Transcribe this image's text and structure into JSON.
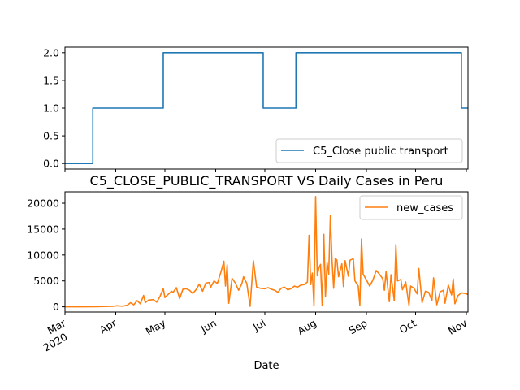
{
  "chart_data": [
    {
      "type": "line",
      "title": "",
      "xlabel": "",
      "ylabel": "",
      "ylim": [
        -0.1,
        2.1
      ],
      "yticks": [
        0.0,
        0.5,
        1.0,
        1.5,
        2.0
      ],
      "ytick_labels": [
        "0.0",
        "0.5",
        "1.0",
        "1.5",
        "2.0"
      ],
      "legend_position": "lower-right",
      "grid": false,
      "series": [
        {
          "name": "C5_Close public transport",
          "color": "#1f77b4",
          "step": true,
          "points": [
            [
              "2020-03-01",
              0
            ],
            [
              "2020-03-18",
              0
            ],
            [
              "2020-03-18",
              1
            ],
            [
              "2020-04-30",
              1
            ],
            [
              "2020-04-30",
              2
            ],
            [
              "2020-06-30",
              2
            ],
            [
              "2020-06-30",
              1
            ],
            [
              "2020-07-20",
              1
            ],
            [
              "2020-07-20",
              2
            ],
            [
              "2020-10-29",
              2
            ],
            [
              "2020-10-29",
              1
            ],
            [
              "2020-11-02",
              1
            ]
          ]
        }
      ]
    },
    {
      "type": "line",
      "title": "C5_CLOSE_PUBLIC_TRANSPORT VS Daily Cases in Peru",
      "xlabel": "Date",
      "ylabel": "",
      "xlim": [
        "2020-03-01",
        "2020-11-02"
      ],
      "ylim": [
        -1000,
        22200
      ],
      "yticks": [
        0,
        5000,
        10000,
        15000,
        20000
      ],
      "ytick_labels": [
        "0",
        "5000",
        "10000",
        "15000",
        "20000"
      ],
      "xticks": [
        {
          "date": "2020-03-01",
          "label": "Mar",
          "sublabel": "2020"
        },
        {
          "date": "2020-04-01",
          "label": "Apr"
        },
        {
          "date": "2020-05-01",
          "label": "May"
        },
        {
          "date": "2020-06-01",
          "label": "Jun"
        },
        {
          "date": "2020-07-01",
          "label": "Jul"
        },
        {
          "date": "2020-08-01",
          "label": "Aug"
        },
        {
          "date": "2020-09-01",
          "label": "Sep"
        },
        {
          "date": "2020-10-01",
          "label": "Oct"
        },
        {
          "date": "2020-11-01",
          "label": "Nov"
        }
      ],
      "legend_position": "upper-right",
      "grid": false,
      "series": [
        {
          "name": "new_cases",
          "color": "#ff7f0e",
          "points": [
            [
              "2020-03-01",
              0
            ],
            [
              "2020-03-10",
              0
            ],
            [
              "2020-03-20",
              30
            ],
            [
              "2020-03-25",
              60
            ],
            [
              "2020-03-30",
              100
            ],
            [
              "2020-04-02",
              200
            ],
            [
              "2020-04-05",
              120
            ],
            [
              "2020-04-08",
              300
            ],
            [
              "2020-04-10",
              800
            ],
            [
              "2020-04-12",
              400
            ],
            [
              "2020-04-14",
              1200
            ],
            [
              "2020-04-16",
              600
            ],
            [
              "2020-04-18",
              2200
            ],
            [
              "2020-04-19",
              800
            ],
            [
              "2020-04-21",
              1300
            ],
            [
              "2020-04-24",
              1400
            ],
            [
              "2020-04-26",
              900
            ],
            [
              "2020-04-28",
              2000
            ],
            [
              "2020-04-30",
              3500
            ],
            [
              "2020-05-01",
              1800
            ],
            [
              "2020-05-03",
              2400
            ],
            [
              "2020-05-05",
              3000
            ],
            [
              "2020-05-06",
              2800
            ],
            [
              "2020-05-08",
              3700
            ],
            [
              "2020-05-10",
              1600
            ],
            [
              "2020-05-12",
              3400
            ],
            [
              "2020-05-14",
              3500
            ],
            [
              "2020-05-16",
              3200
            ],
            [
              "2020-05-18",
              2600
            ],
            [
              "2020-05-20",
              3300
            ],
            [
              "2020-05-22",
              4400
            ],
            [
              "2020-05-24",
              3000
            ],
            [
              "2020-05-26",
              4600
            ],
            [
              "2020-05-28",
              4700
            ],
            [
              "2020-05-29",
              3800
            ],
            [
              "2020-05-31",
              5000
            ],
            [
              "2020-06-02",
              4500
            ],
            [
              "2020-06-04",
              6500
            ],
            [
              "2020-06-06",
              8800
            ],
            [
              "2020-06-07",
              4000
            ],
            [
              "2020-06-08",
              8100
            ],
            [
              "2020-06-09",
              700
            ],
            [
              "2020-06-11",
              5500
            ],
            [
              "2020-06-13",
              4600
            ],
            [
              "2020-06-15",
              3200
            ],
            [
              "2020-06-17",
              4500
            ],
            [
              "2020-06-18",
              5800
            ],
            [
              "2020-06-20",
              4500
            ],
            [
              "2020-06-22",
              100
            ],
            [
              "2020-06-24",
              8900
            ],
            [
              "2020-06-26",
              3800
            ],
            [
              "2020-06-28",
              3600
            ],
            [
              "2020-07-01",
              3500
            ],
            [
              "2020-07-03",
              3700
            ],
            [
              "2020-07-05",
              3400
            ],
            [
              "2020-07-07",
              3200
            ],
            [
              "2020-07-09",
              2800
            ],
            [
              "2020-07-11",
              3600
            ],
            [
              "2020-07-13",
              3800
            ],
            [
              "2020-07-15",
              3300
            ],
            [
              "2020-07-17",
              3500
            ],
            [
              "2020-07-19",
              4000
            ],
            [
              "2020-07-21",
              3800
            ],
            [
              "2020-07-23",
              4200
            ],
            [
              "2020-07-25",
              4300
            ],
            [
              "2020-07-27",
              4800
            ],
            [
              "2020-07-28",
              13800
            ],
            [
              "2020-07-29",
              4300
            ],
            [
              "2020-07-30",
              6500
            ],
            [
              "2020-07-31",
              200
            ],
            [
              "2020-08-01",
              21300
            ],
            [
              "2020-08-02",
              6000
            ],
            [
              "2020-08-03",
              7500
            ],
            [
              "2020-08-04",
              8200
            ],
            [
              "2020-08-05",
              200
            ],
            [
              "2020-08-06",
              14000
            ],
            [
              "2020-08-07",
              2000
            ],
            [
              "2020-08-08",
              8500
            ],
            [
              "2020-08-09",
              6300
            ],
            [
              "2020-08-10",
              17600
            ],
            [
              "2020-08-11",
              9100
            ],
            [
              "2020-08-12",
              3600
            ],
            [
              "2020-08-13",
              9400
            ],
            [
              "2020-08-14",
              9000
            ],
            [
              "2020-08-15",
              5800
            ],
            [
              "2020-08-17",
              8300
            ],
            [
              "2020-08-18",
              3900
            ],
            [
              "2020-08-19",
              8900
            ],
            [
              "2020-08-21",
              5900
            ],
            [
              "2020-08-22",
              9000
            ],
            [
              "2020-08-24",
              9300
            ],
            [
              "2020-08-25",
              5000
            ],
            [
              "2020-08-27",
              4000
            ],
            [
              "2020-08-28",
              300
            ],
            [
              "2020-08-29",
              13100
            ],
            [
              "2020-08-30",
              6300
            ],
            [
              "2020-09-01",
              5200
            ],
            [
              "2020-09-03",
              4000
            ],
            [
              "2020-09-05",
              5200
            ],
            [
              "2020-09-07",
              7000
            ],
            [
              "2020-09-09",
              6300
            ],
            [
              "2020-09-11",
              5400
            ],
            [
              "2020-09-12",
              3200
            ],
            [
              "2020-09-13",
              6800
            ],
            [
              "2020-09-15",
              1000
            ],
            [
              "2020-09-16",
              6200
            ],
            [
              "2020-09-18",
              1200
            ],
            [
              "2020-09-19",
              12000
            ],
            [
              "2020-09-20",
              5000
            ],
            [
              "2020-09-22",
              5300
            ],
            [
              "2020-09-23",
              3300
            ],
            [
              "2020-09-25",
              4800
            ],
            [
              "2020-09-27",
              300
            ],
            [
              "2020-09-28",
              4000
            ],
            [
              "2020-09-30",
              3600
            ],
            [
              "2020-10-02",
              2500
            ],
            [
              "2020-10-03",
              7400
            ],
            [
              "2020-10-05",
              800
            ],
            [
              "2020-10-07",
              3000
            ],
            [
              "2020-10-09",
              2800
            ],
            [
              "2020-10-11",
              1200
            ],
            [
              "2020-10-12",
              5600
            ],
            [
              "2020-10-14",
              400
            ],
            [
              "2020-10-16",
              2900
            ],
            [
              "2020-10-18",
              3200
            ],
            [
              "2020-10-19",
              700
            ],
            [
              "2020-10-21",
              4200
            ],
            [
              "2020-10-23",
              2300
            ],
            [
              "2020-10-24",
              5400
            ],
            [
              "2020-10-25",
              600
            ],
            [
              "2020-10-27",
              2200
            ],
            [
              "2020-10-29",
              2700
            ],
            [
              "2020-10-31",
              2600
            ],
            [
              "2020-11-02",
              2400
            ]
          ]
        }
      ]
    }
  ]
}
